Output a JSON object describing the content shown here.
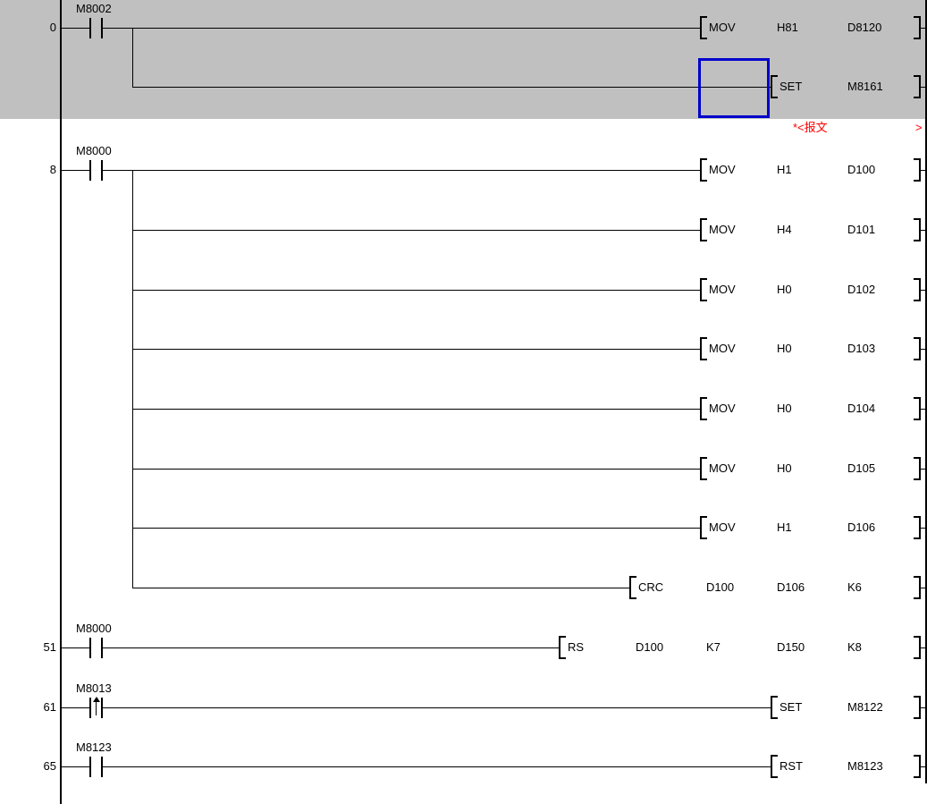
{
  "ladder": {
    "colors": {
      "background": "#ffffff",
      "selection_highlight": "#c0c0c0",
      "cursor_border": "#0000cc",
      "comment_text": "#ff0000",
      "wire": "#000000",
      "text": "#000000"
    },
    "statement": {
      "text": "*<报文",
      "close_marker": ">"
    },
    "rows": [
      {
        "kind": "rung",
        "step": "0",
        "contact": {
          "device": "M8002",
          "type": "no"
        },
        "instr": {
          "name": "MOV",
          "ops": [
            "H81",
            "D8120"
          ]
        },
        "tee": true
      },
      {
        "kind": "branch",
        "instr": {
          "name": "SET",
          "ops": [
            "M8161"
          ]
        },
        "cursor": true
      },
      {
        "kind": "comment"
      },
      {
        "kind": "rung",
        "step": "8",
        "contact": {
          "device": "M8000",
          "type": "no"
        },
        "instr": {
          "name": "MOV",
          "ops": [
            "H1",
            "D100"
          ]
        },
        "tee": true
      },
      {
        "kind": "branch",
        "instr": {
          "name": "MOV",
          "ops": [
            "H4",
            "D101"
          ]
        }
      },
      {
        "kind": "branch",
        "instr": {
          "name": "MOV",
          "ops": [
            "H0",
            "D102"
          ]
        }
      },
      {
        "kind": "branch",
        "instr": {
          "name": "MOV",
          "ops": [
            "H0",
            "D103"
          ]
        }
      },
      {
        "kind": "branch",
        "instr": {
          "name": "MOV",
          "ops": [
            "H0",
            "D104"
          ]
        }
      },
      {
        "kind": "branch",
        "instr": {
          "name": "MOV",
          "ops": [
            "H0",
            "D105"
          ]
        }
      },
      {
        "kind": "branch",
        "instr": {
          "name": "MOV",
          "ops": [
            "H1",
            "D106"
          ]
        }
      },
      {
        "kind": "branch",
        "instr": {
          "name": "CRC",
          "ops": [
            "D100",
            "D106",
            "K6"
          ]
        }
      },
      {
        "kind": "rung",
        "step": "51",
        "contact": {
          "device": "M8000",
          "type": "no"
        },
        "instr": {
          "name": "RS",
          "ops": [
            "D100",
            "K7",
            "D150",
            "K8"
          ]
        }
      },
      {
        "kind": "rung",
        "step": "61",
        "contact": {
          "device": "M8013",
          "type": "pulse"
        },
        "instr": {
          "name": "SET",
          "ops": [
            "M8122"
          ]
        }
      },
      {
        "kind": "rung",
        "step": "65",
        "contact": {
          "device": "M8123",
          "type": "no"
        },
        "instr": {
          "name": "RST",
          "ops": [
            "M8123"
          ]
        }
      }
    ]
  }
}
